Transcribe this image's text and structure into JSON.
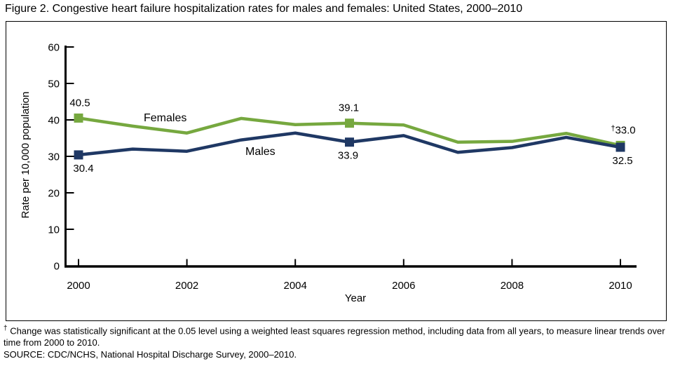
{
  "title": "Figure 2. Congestive heart failure hospitalization rates for males and females: United States, 2000–2010",
  "chart_data": {
    "type": "line",
    "x": [
      2000,
      2001,
      2002,
      2003,
      2004,
      2005,
      2006,
      2007,
      2008,
      2009,
      2010
    ],
    "series": [
      {
        "name": "Females",
        "color": "#76A83F",
        "values": [
          40.5,
          38.3,
          36.4,
          40.4,
          38.7,
          39.1,
          38.6,
          33.9,
          34.1,
          36.3,
          33.0
        ]
      },
      {
        "name": "Males",
        "color": "#1F3864",
        "values": [
          30.4,
          32.0,
          31.4,
          34.5,
          36.4,
          33.9,
          35.7,
          31.1,
          32.4,
          35.2,
          32.5
        ]
      }
    ],
    "title": "",
    "xlabel": "Year",
    "ylabel": "Rate per 10,000 population",
    "ylim": [
      0,
      60
    ],
    "ytick_interval": 10,
    "xticks": [
      2000,
      2002,
      2004,
      2006,
      2008,
      2010
    ],
    "marker_years": [
      2000,
      2005,
      2010
    ],
    "grid": false,
    "legend_position": "inline-labels",
    "point_labels": [
      {
        "series": "Females",
        "year": 2000,
        "text": "40.5",
        "placement": "above"
      },
      {
        "series": "Males",
        "year": 2000,
        "text": "30.4",
        "placement": "below"
      },
      {
        "series": "Females",
        "year": 2005,
        "text": "39.1",
        "placement": "above"
      },
      {
        "series": "Males",
        "year": 2005,
        "text": "33.9",
        "placement": "below"
      },
      {
        "series": "Females",
        "year": 2010,
        "sup": "†",
        "text": "33.0",
        "placement": "above"
      },
      {
        "series": "Males",
        "year": 2010,
        "text": "32.5",
        "placement": "below"
      }
    ]
  },
  "footnote": {
    "symbol": "†",
    "text": "Change was statistically significant at the 0.05 level using a weighted least squares regression method, including data from all years, to measure linear trends over time from 2000 to 2010."
  },
  "source": "SOURCE: CDC/NCHS, National Hospital Discharge Survey, 2000–2010."
}
